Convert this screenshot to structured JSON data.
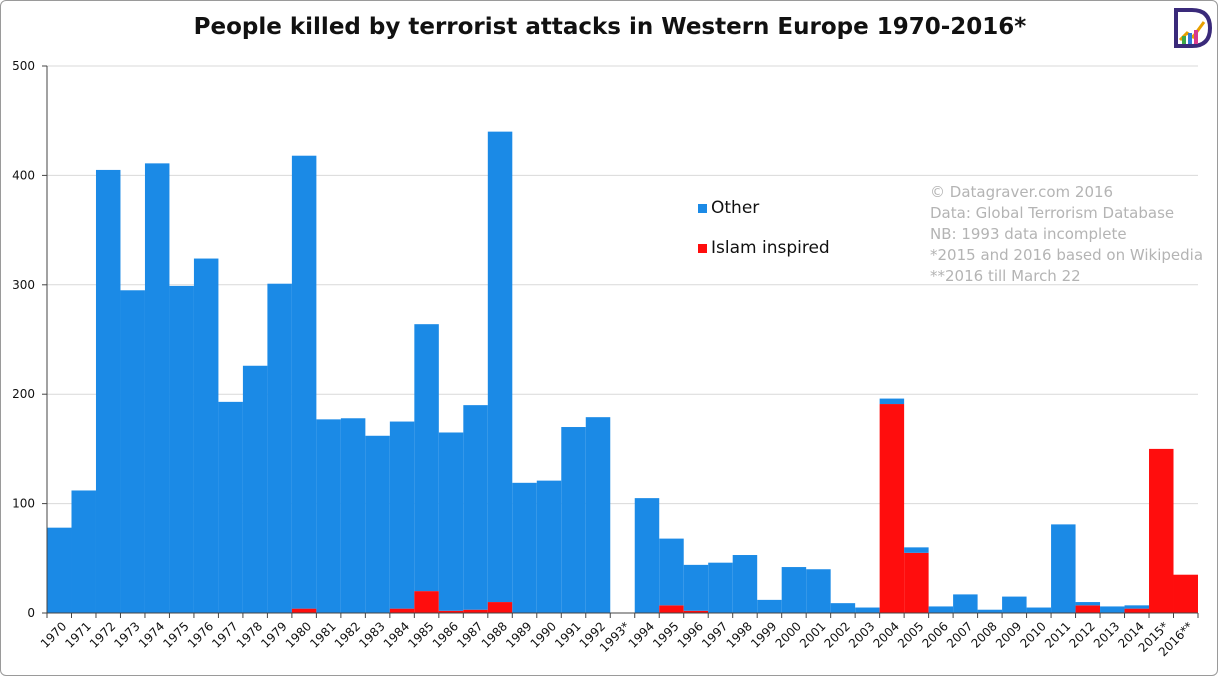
{
  "chart_data": {
    "type": "bar",
    "stacked": true,
    "title": "People killed by terrorist attacks in Western Europe 1970-2016*",
    "xlabel": "",
    "ylabel": "",
    "ylim": [
      0,
      500
    ],
    "yticks": [
      0,
      100,
      200,
      300,
      400,
      500
    ],
    "grid": true,
    "legend_position": "right",
    "categories": [
      "1970",
      "1971",
      "1972",
      "1973",
      "1974",
      "1975",
      "1976",
      "1977",
      "1978",
      "1979",
      "1980",
      "1981",
      "1982",
      "1983",
      "1984",
      "1985",
      "1986",
      "1987",
      "1988",
      "1989",
      "1990",
      "1991",
      "1992",
      "1993*",
      "1994",
      "1995",
      "1996",
      "1997",
      "1998",
      "1999",
      "2000",
      "2001",
      "2002",
      "2003",
      "2004",
      "2005",
      "2006",
      "2007",
      "2008",
      "2009",
      "2010",
      "2011",
      "2012",
      "2013",
      "2014",
      "2015*",
      "2016**"
    ],
    "series": [
      {
        "name": "Islam inspired",
        "color": "#ff0d0d",
        "values": [
          0,
          0,
          0,
          0,
          0,
          0,
          0,
          0,
          0,
          0,
          4,
          0,
          0,
          0,
          4,
          20,
          2,
          3,
          10,
          0,
          0,
          0,
          0,
          0,
          0,
          7,
          2,
          0,
          0,
          0,
          0,
          0,
          0,
          0,
          191,
          55,
          0,
          0,
          0,
          0,
          0,
          0,
          7,
          0,
          4,
          150,
          35
        ]
      },
      {
        "name": "Other",
        "color": "#1b8ae6",
        "values": [
          78,
          112,
          405,
          295,
          411,
          299,
          324,
          193,
          226,
          301,
          414,
          177,
          178,
          162,
          171,
          244,
          163,
          187,
          430,
          119,
          121,
          170,
          179,
          0,
          105,
          61,
          42,
          46,
          53,
          12,
          42,
          40,
          9,
          5,
          5,
          5,
          6,
          17,
          3,
          15,
          5,
          81,
          3,
          6,
          3,
          0,
          0
        ]
      }
    ]
  },
  "legend": {
    "other_label": "Other",
    "islam_label": "Islam inspired"
  },
  "notes": [
    "© Datagraver.com 2016",
    "Data: Global Terrorism Database",
    "NB: 1993 data incomplete",
    "*2015 and 2016 based on Wikipedia",
    "**2016 till March 22"
  ],
  "logo": {
    "letter": "D"
  }
}
